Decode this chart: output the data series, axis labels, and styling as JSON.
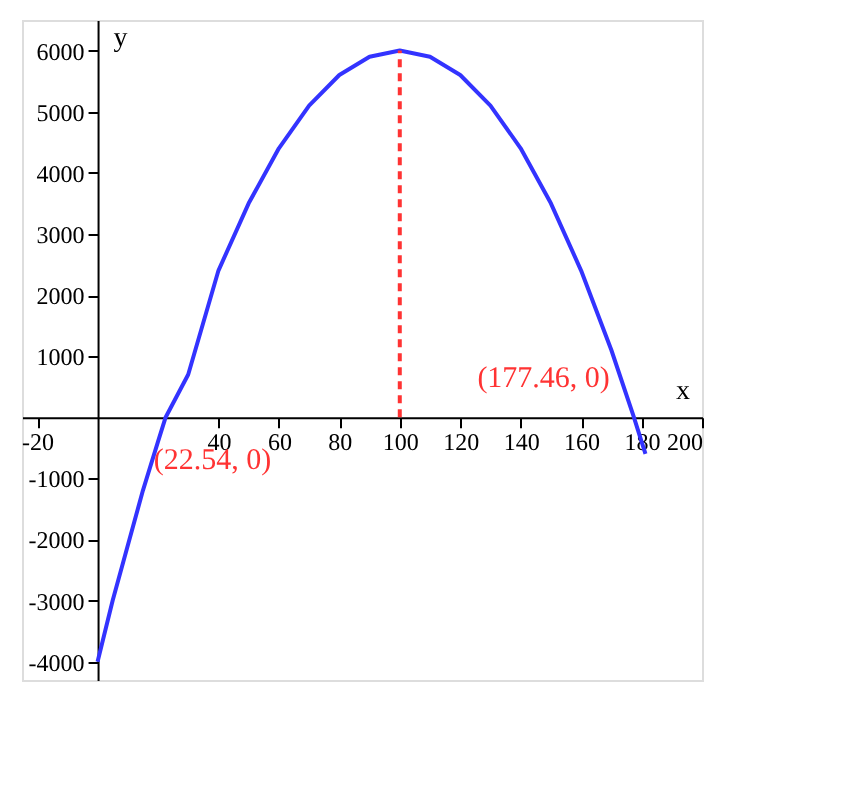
{
  "chart_data": {
    "type": "line",
    "xlabel": "x",
    "ylabel": "y",
    "xlim": [
      -25,
      200
    ],
    "ylim": [
      -4300,
      6500
    ],
    "xticks": [
      -20,
      40,
      60,
      80,
      100,
      120,
      140,
      160,
      180,
      200
    ],
    "yticks": [
      -4000,
      -3000,
      -2000,
      -1000,
      1000,
      2000,
      3000,
      4000,
      5000,
      6000
    ],
    "grid": false,
    "series": [
      {
        "color": "#3333ff",
        "line_style": "solid",
        "x": [
          0,
          5,
          10,
          15,
          20,
          22.54,
          30,
          40,
          50,
          60,
          70,
          80,
          90,
          100,
          110,
          120,
          130,
          140,
          150,
          160,
          170,
          177.46,
          180,
          181.3
        ],
        "values": [
          -4000,
          -3000,
          -2100,
          -1200,
          -400,
          0,
          700,
          2400,
          3500,
          4400,
          5100,
          5600,
          5900,
          6000,
          5900,
          5600,
          5100,
          4400,
          3500,
          2400,
          1100,
          0,
          -400,
          -600
        ]
      },
      {
        "color": "#ff3333",
        "line_style": "dashed",
        "x": [
          100,
          100
        ],
        "values": [
          0,
          6000
        ]
      }
    ],
    "annotations": [
      {
        "text": "(22.54, 0)",
        "x": 22.54,
        "y": 0
      },
      {
        "text": "(177.46, 0)",
        "x": 177.46,
        "y": 0
      }
    ]
  }
}
